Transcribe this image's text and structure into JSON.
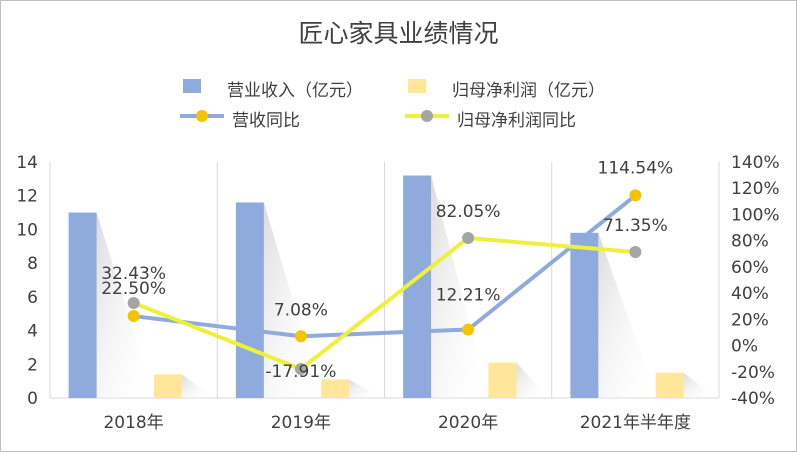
{
  "chart_data": {
    "type": "bar",
    "title": "匠心家具业绩情况",
    "categories": [
      "2018年",
      "2019年",
      "2020年",
      "2021年半年度"
    ],
    "series": [
      {
        "name": "营业收入（亿元）",
        "kind": "bar",
        "axis": "left",
        "values": [
          11.0,
          11.6,
          13.2,
          9.8
        ],
        "color": "#8faadc"
      },
      {
        "name": "归母净利润（亿元）",
        "kind": "bar",
        "axis": "left",
        "values": [
          1.4,
          1.1,
          2.1,
          1.5
        ],
        "color": "#ffe699"
      },
      {
        "name": "营收同比",
        "kind": "line",
        "axis": "right",
        "values": [
          22.5,
          7.08,
          12.21,
          114.54
        ],
        "labels": [
          "22.50%",
          "7.08%",
          "12.21%",
          "114.54%"
        ],
        "line_color": "#8faadc",
        "marker_color": "#f5c400"
      },
      {
        "name": "归母净利润同比",
        "kind": "line",
        "axis": "right",
        "values": [
          32.43,
          -17.91,
          82.05,
          71.35
        ],
        "labels": [
          "32.43%",
          "-17.91%",
          "82.05%",
          "71.35%"
        ],
        "line_color": "#eef13b",
        "marker_color": "#a5a5a5"
      }
    ],
    "y_left": {
      "min": 0,
      "max": 14,
      "ticks": [
        "0",
        "2",
        "4",
        "6",
        "8",
        "10",
        "12",
        "14"
      ]
    },
    "y_right": {
      "min": -40,
      "max": 140,
      "ticks": [
        "-40%",
        "-20%",
        "0%",
        "20%",
        "40%",
        "60%",
        "80%",
        "100%",
        "120%",
        "140%"
      ]
    },
    "grid": "vertical",
    "legend_position": "top"
  }
}
